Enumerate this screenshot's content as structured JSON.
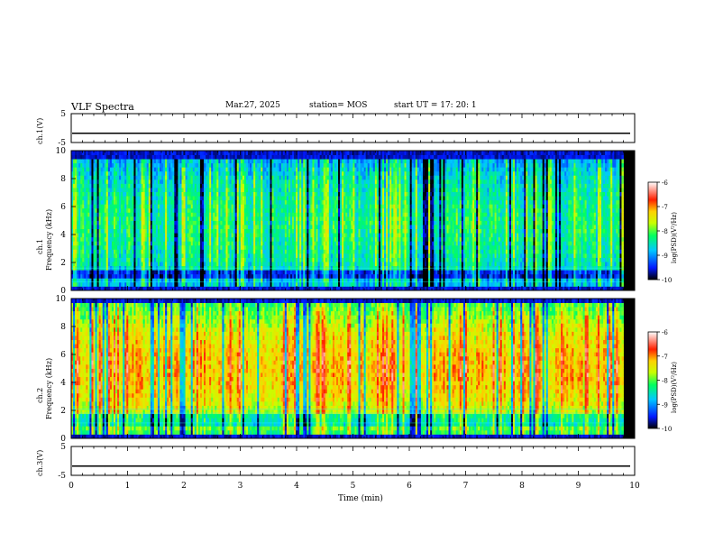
{
  "header": {
    "title": "VLF Spectra",
    "date": "Mar.27, 2025",
    "station": "station= MOS",
    "start": "start  UT  =    17: 20: 1"
  },
  "axes": {
    "xlabel": "Time  (min)",
    "ch1_wave_label": "ch.1(V)",
    "ch3_wave_label": "ch.3(V)",
    "ch1_spec_label_line1": "ch.1",
    "ch1_spec_label_line2": "Frequency  (kHz)",
    "ch2_spec_label_line1": "ch.2",
    "ch2_spec_label_line2": "Frequency  (kHz)",
    "colorbar_label": "log(PSD)(V²/Hz)"
  },
  "colors": {
    "colormap": [
      "#000000",
      "#0018ff",
      "#00c8ff",
      "#00ff60",
      "#c8ff00",
      "#ffd000",
      "#ff2000",
      "#ffffff"
    ]
  },
  "chart_data": [
    {
      "type": "line",
      "name": "ch1-waveform",
      "ylabel": "ch.1(V)",
      "ylim": [
        -5,
        5
      ],
      "yticks": [
        -5,
        5
      ],
      "xlim": [
        0,
        10
      ],
      "level": -1.8
    },
    {
      "type": "heatmap",
      "name": "ch1-spectrogram",
      "xlabel": "",
      "ylabel": "Frequency (kHz)",
      "xlim": [
        0,
        10
      ],
      "data_end_min": 9.8,
      "ylim": [
        0,
        10
      ],
      "yticks": [
        0,
        2,
        4,
        6,
        8,
        10
      ],
      "colorbar": {
        "label": "log(PSD)(V²/Hz)",
        "range": [
          -10,
          -6
        ],
        "ticks": [
          -6,
          -7,
          -8,
          -9,
          -10
        ]
      },
      "features": {
        "band_kHz": [
          0.3,
          9.3
        ],
        "line_kHz": [
          0.6,
          1.6
        ],
        "typical_log_psd": -8.3
      }
    },
    {
      "type": "heatmap",
      "name": "ch2-spectrogram",
      "xlabel": "",
      "ylabel": "Frequency (kHz)",
      "xlim": [
        0,
        10
      ],
      "data_end_min": 9.8,
      "ylim": [
        0,
        10
      ],
      "yticks": [
        0,
        2,
        4,
        6,
        8,
        10
      ],
      "colorbar": {
        "label": "log(PSD)(V²/Hz)",
        "range": [
          -10,
          -6
        ],
        "ticks": [
          -6,
          -7,
          -8,
          -9,
          -10
        ]
      },
      "features": {
        "band_kHz": [
          0.3,
          9.8
        ],
        "line_kHz": [
          1.1,
          1.8,
          2.1
        ],
        "typical_log_psd": -7.2
      }
    },
    {
      "type": "line",
      "name": "ch3-waveform",
      "ylabel": "ch.3(V)",
      "xlabel": "Time  (min)",
      "ylim": [
        -5,
        5
      ],
      "yticks": [
        -5,
        5
      ],
      "xlim": [
        0,
        10
      ],
      "xticks": [
        0,
        1,
        2,
        3,
        4,
        5,
        6,
        7,
        8,
        9,
        10
      ],
      "level": -1.8
    }
  ]
}
